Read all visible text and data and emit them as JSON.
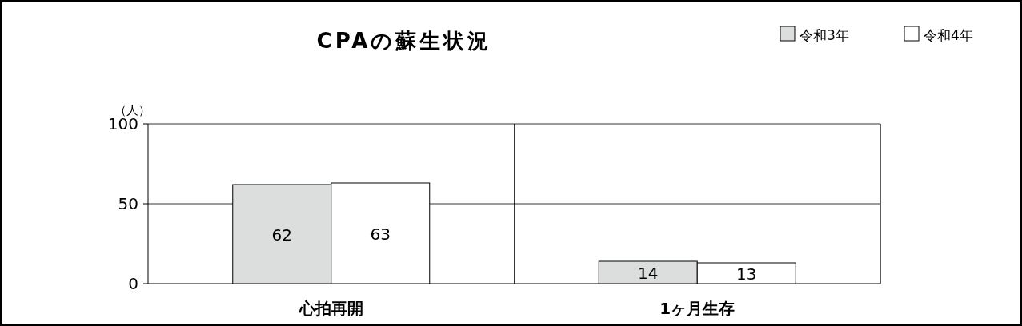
{
  "chart_data": {
    "type": "bar",
    "title": "CPAの蘇生状況",
    "ylabel": "（人）",
    "categories": [
      "心拍再開",
      "1ヶ月生存"
    ],
    "series": [
      {
        "name": "令和3年",
        "color": "#dcdddd",
        "values": [
          62,
          14
        ]
      },
      {
        "name": "令和4年",
        "color": "#ffffff",
        "values": [
          63,
          13
        ]
      }
    ],
    "ylim": [
      0,
      100
    ],
    "yticks": [
      0,
      50,
      100
    ],
    "grid": "y",
    "legend": "top right",
    "data_labels": true
  }
}
